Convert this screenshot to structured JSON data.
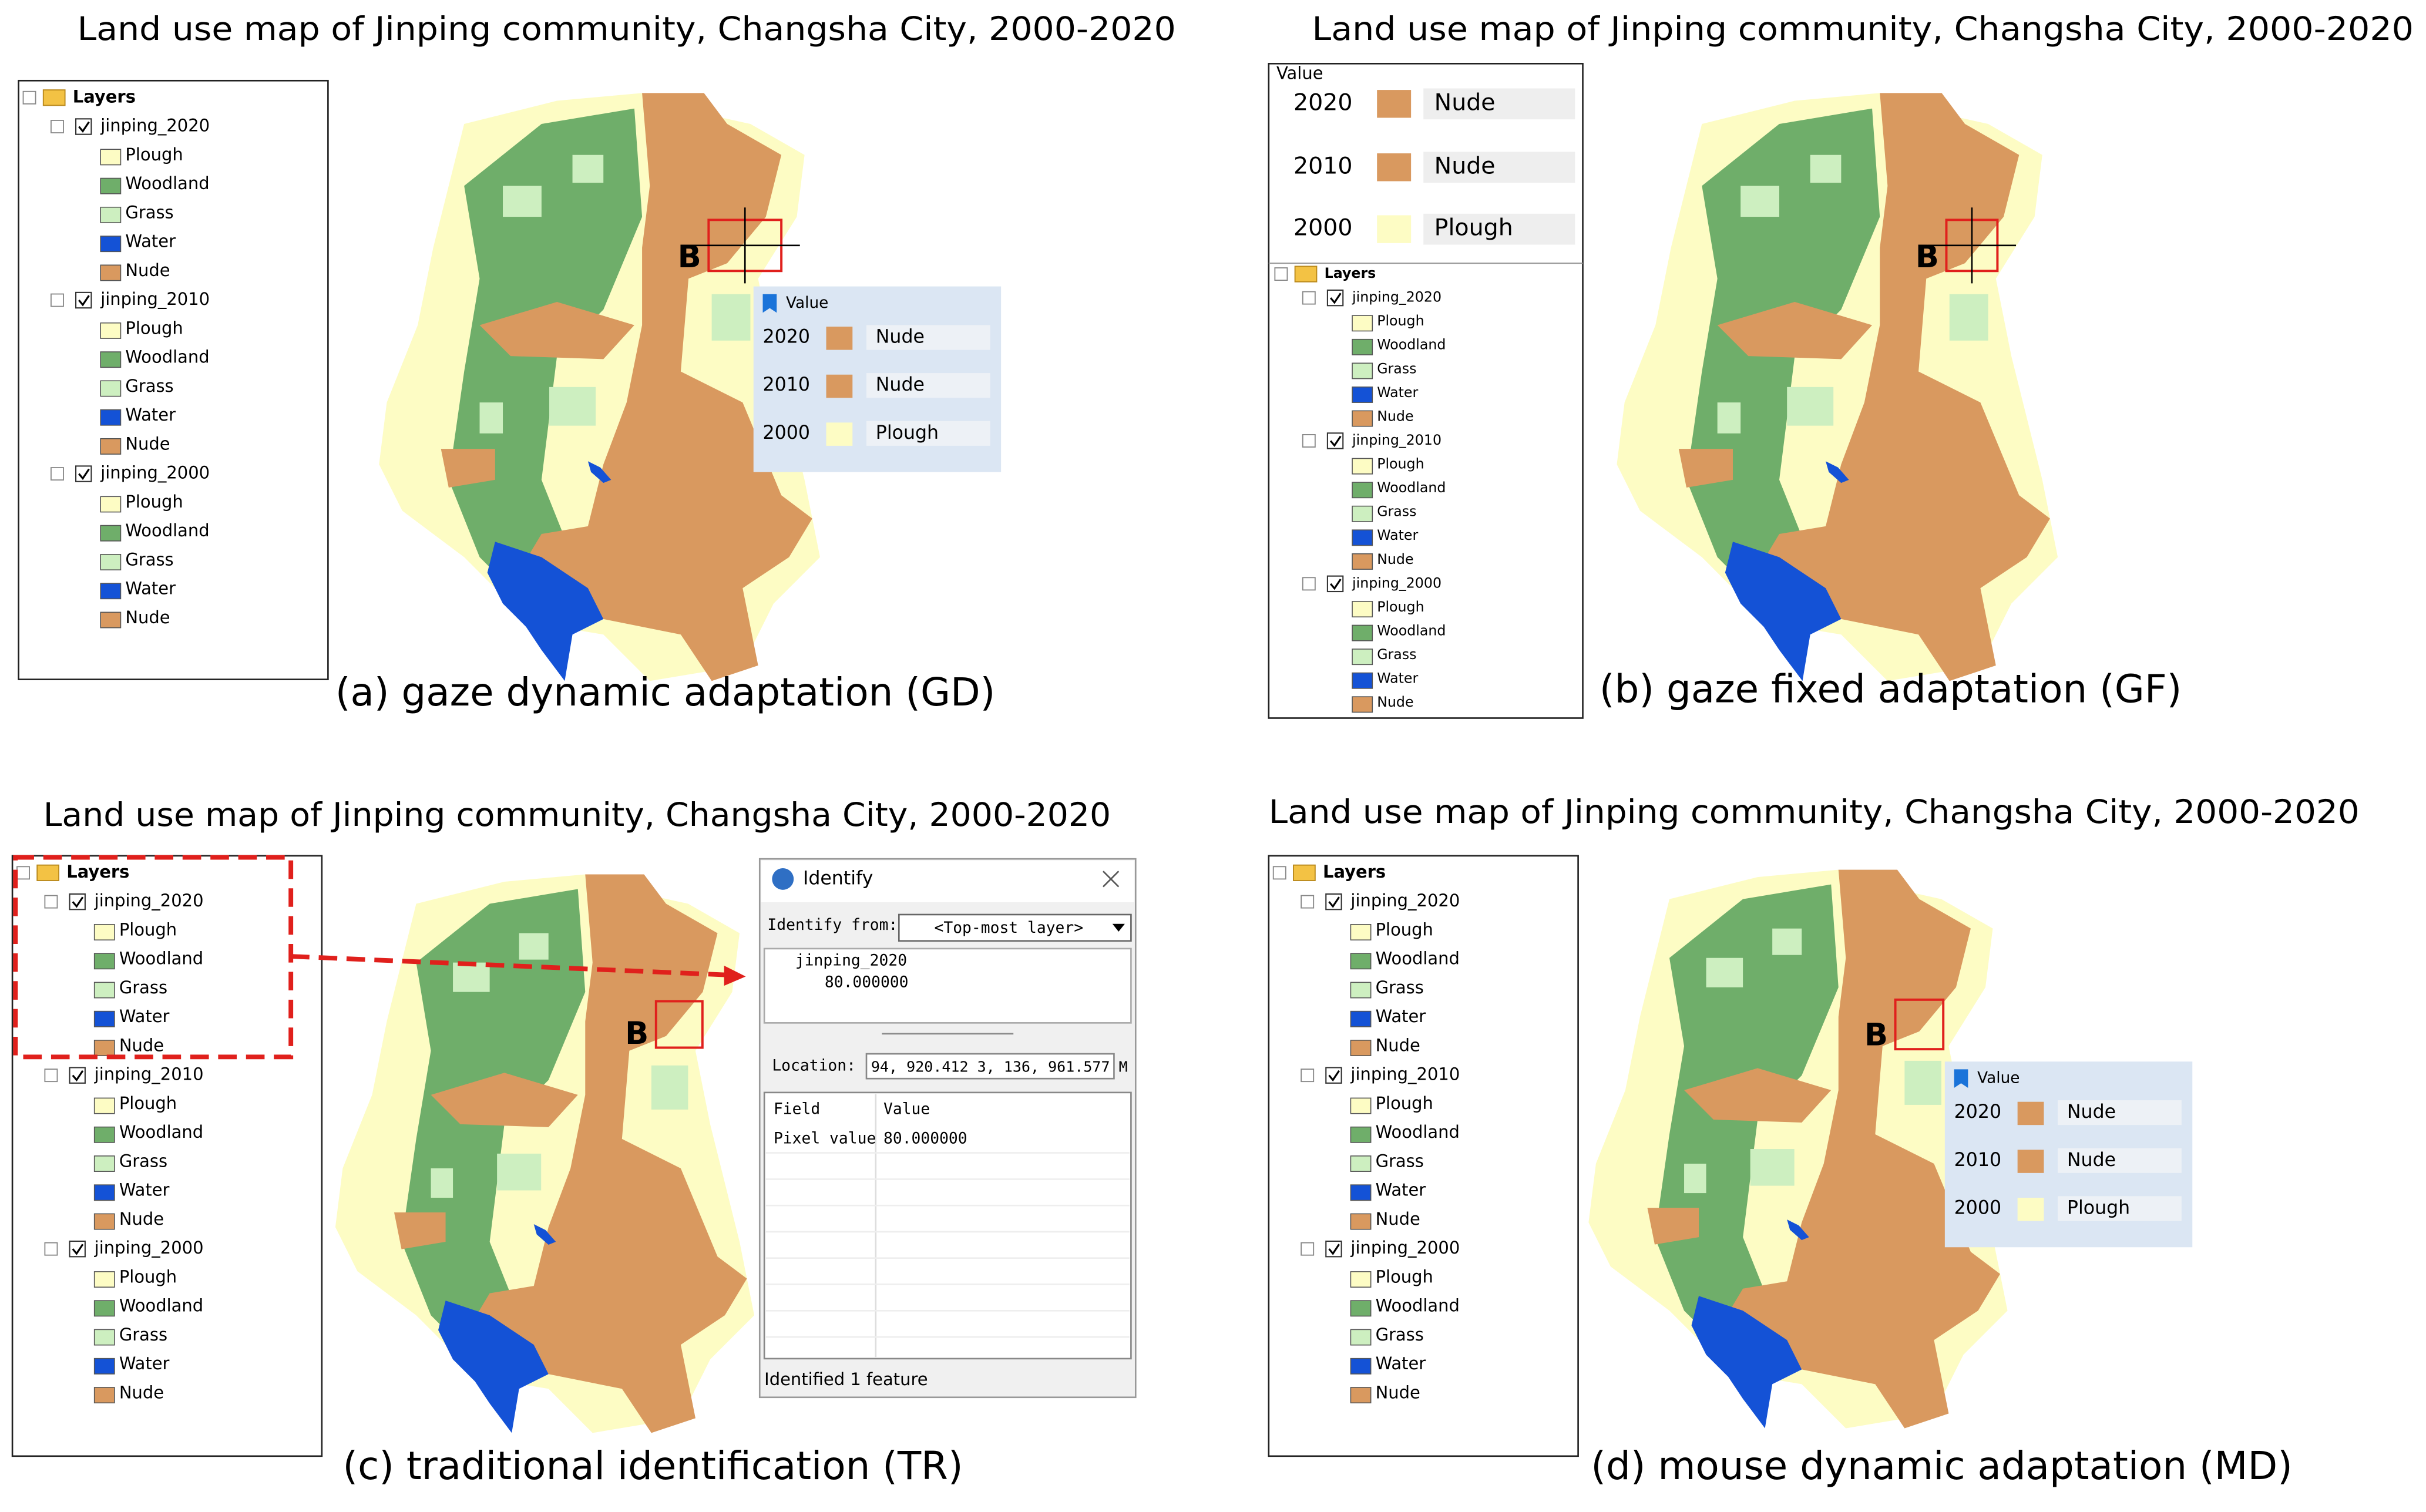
{
  "panels": [
    {
      "title": "Land use map of Jinping community, Changsha City, 2000-2020",
      "caption": "(a) gaze dynamic adaptation (GD)",
      "marker": "B",
      "layers_header": "Layers",
      "layers": [
        {
          "name": "jinping_2020",
          "classes": [
            "Plough",
            "Woodland",
            "Grass",
            "Water",
            "Nude"
          ]
        },
        {
          "name": "jinping_2010",
          "classes": [
            "Plough",
            "Woodland",
            "Grass",
            "Water",
            "Nude"
          ]
        },
        {
          "name": "jinping_2000",
          "classes": [
            "Plough",
            "Woodland",
            "Grass",
            "Water",
            "Nude"
          ]
        }
      ],
      "popup": {
        "header": "Value",
        "rows": [
          [
            "2020",
            "Nude"
          ],
          [
            "2010",
            "Nude"
          ],
          [
            "2000",
            "Plough"
          ]
        ]
      }
    },
    {
      "title": "Land use map of Jinping community, Changsha City, 2000-2020",
      "caption": "(b)  gaze fixed adaptation (GF)",
      "marker": "B",
      "layers_header": "Layers",
      "layers": [
        {
          "name": "jinping_2020",
          "classes": [
            "Plough",
            "Woodland",
            "Grass",
            "Water",
            "Nude"
          ]
        },
        {
          "name": "jinping_2010",
          "classes": [
            "Plough",
            "Woodland",
            "Grass",
            "Water",
            "Nude"
          ]
        },
        {
          "name": "jinping_2000",
          "classes": [
            "Plough",
            "Woodland",
            "Grass",
            "Water",
            "Nude"
          ]
        }
      ],
      "popup": {
        "header": "Value",
        "rows": [
          [
            "2020",
            "Nude"
          ],
          [
            "2010",
            "Nude"
          ],
          [
            "2000",
            "Plough"
          ]
        ]
      }
    },
    {
      "title": "Land use map of Jinping community, Changsha City, 2000-2020",
      "caption": "(c) traditional identification (TR)",
      "marker": "B",
      "layers_header": "Layers",
      "layers": [
        {
          "name": "jinping_2020",
          "classes": [
            "Plough",
            "Woodland",
            "Grass",
            "Water",
            "Nude"
          ]
        },
        {
          "name": "jinping_2010",
          "classes": [
            "Plough",
            "Woodland",
            "Grass",
            "Water",
            "Nude"
          ]
        },
        {
          "name": "jinping_2000",
          "classes": [
            "Plough",
            "Woodland",
            "Grass",
            "Water",
            "Nude"
          ]
        }
      ],
      "identify": {
        "title": "Identify",
        "from_label": "Identify from:",
        "from_value": "<Top-most layer>",
        "tree_layer": "jinping_2020",
        "tree_value": "80.000000",
        "location_label": "Location:",
        "location_value": "94, 920.412   3, 136, 961.577 M",
        "field_header": "Field",
        "value_header": "Value",
        "field": "Pixel value",
        "value": "80.000000",
        "status": "Identified 1 feature"
      }
    },
    {
      "title": "Land use map of Jinping community, Changsha City, 2000-2020",
      "caption": "(d) mouse dynamic adaptation (MD)",
      "marker": "B",
      "layers_header": "Layers",
      "layers": [
        {
          "name": "jinping_2020",
          "classes": [
            "Plough",
            "Woodland",
            "Grass",
            "Water",
            "Nude"
          ]
        },
        {
          "name": "jinping_2010",
          "classes": [
            "Plough",
            "Woodland",
            "Grass",
            "Water",
            "Nude"
          ]
        },
        {
          "name": "jinping_2000",
          "classes": [
            "Plough",
            "Woodland",
            "Grass",
            "Water",
            "Nude"
          ]
        }
      ],
      "popup": {
        "header": "Value",
        "rows": [
          [
            "2020",
            "Nude"
          ],
          [
            "2010",
            "Nude"
          ],
          [
            "2000",
            "Plough"
          ]
        ]
      }
    }
  ]
}
